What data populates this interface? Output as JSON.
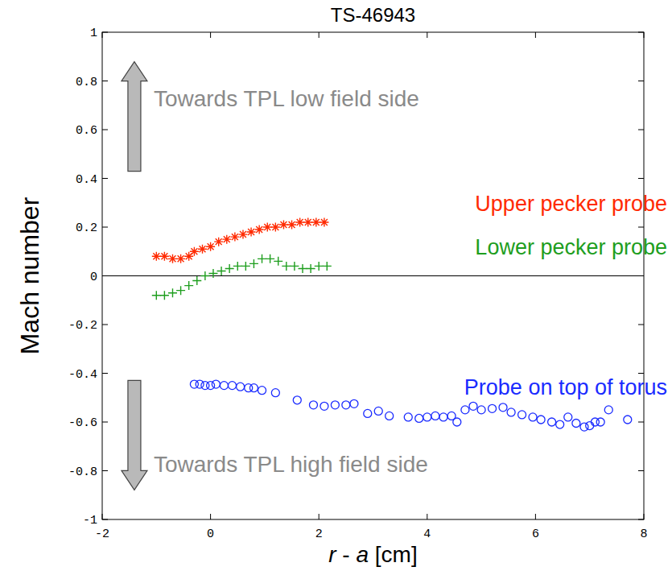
{
  "chart_data": {
    "type": "scatter",
    "title": "TS-46943",
    "x_label": "r - a [cm]",
    "y_label": "Mach number",
    "xlim": [
      -2,
      8
    ],
    "ylim": [
      -1,
      1
    ],
    "xticks": [
      -2,
      0,
      2,
      4,
      6,
      8
    ],
    "yticks": [
      -1,
      -0.8,
      -0.6,
      -0.4,
      -0.2,
      0,
      0.2,
      0.4,
      0.6,
      0.8,
      1
    ],
    "grid": false,
    "reference_line": 0,
    "annotations": [
      {
        "text": "Towards TPL low field side",
        "x": -1.05,
        "y": 0.72,
        "arrow": "up"
      },
      {
        "text": "Towards TPL high field side",
        "x": -1.05,
        "y": -0.78,
        "arrow": "down"
      }
    ],
    "series": [
      {
        "name": "Upper pecker probe",
        "color": "#ff2a00",
        "marker": "asterisk",
        "x": [
          -1.0,
          -0.85,
          -0.7,
          -0.55,
          -0.4,
          -0.3,
          -0.15,
          0,
          0.15,
          0.3,
          0.45,
          0.6,
          0.75,
          0.9,
          1.05,
          1.2,
          1.35,
          1.5,
          1.65,
          1.8,
          1.95,
          2.1
        ],
        "values": [
          0.08,
          0.08,
          0.07,
          0.07,
          0.08,
          0.1,
          0.11,
          0.12,
          0.14,
          0.15,
          0.16,
          0.17,
          0.18,
          0.19,
          0.2,
          0.2,
          0.21,
          0.21,
          0.22,
          0.22,
          0.22,
          0.22
        ]
      },
      {
        "name": "Lower pecker probe",
        "color": "#1e9e1e",
        "marker": "plus",
        "x": [
          -1.0,
          -0.85,
          -0.7,
          -0.55,
          -0.4,
          -0.25,
          -0.1,
          0.05,
          0.2,
          0.35,
          0.5,
          0.65,
          0.8,
          0.95,
          1.1,
          1.25,
          1.4,
          1.55,
          1.7,
          1.85,
          2.0,
          2.15
        ],
        "values": [
          -0.08,
          -0.08,
          -0.07,
          -0.06,
          -0.04,
          -0.02,
          0.0,
          0.01,
          0.02,
          0.03,
          0.04,
          0.04,
          0.05,
          0.07,
          0.07,
          0.06,
          0.04,
          0.04,
          0.03,
          0.03,
          0.04,
          0.04
        ]
      },
      {
        "name": "Probe on top of torus",
        "color": "#1a2bff",
        "marker": "circle",
        "x": [
          -0.3,
          -0.2,
          -0.1,
          0,
          0.1,
          0.25,
          0.4,
          0.55,
          0.7,
          0.8,
          0.95,
          1.2,
          1.6,
          1.9,
          2.1,
          2.3,
          2.5,
          2.65,
          2.9,
          3.1,
          3.3,
          3.65,
          3.85,
          4.0,
          4.15,
          4.3,
          4.45,
          4.55,
          4.7,
          4.85,
          5.0,
          5.2,
          5.4,
          5.55,
          5.75,
          5.95,
          6.1,
          6.3,
          6.45,
          6.6,
          6.75,
          6.9,
          7.0,
          7.1,
          7.2,
          7.35,
          7.7
        ],
        "values": [
          -0.445,
          -0.445,
          -0.45,
          -0.45,
          -0.445,
          -0.45,
          -0.45,
          -0.455,
          -0.46,
          -0.46,
          -0.47,
          -0.48,
          -0.51,
          -0.53,
          -0.535,
          -0.53,
          -0.53,
          -0.525,
          -0.565,
          -0.555,
          -0.575,
          -0.58,
          -0.585,
          -0.58,
          -0.575,
          -0.58,
          -0.575,
          -0.6,
          -0.55,
          -0.535,
          -0.55,
          -0.545,
          -0.54,
          -0.56,
          -0.57,
          -0.58,
          -0.59,
          -0.6,
          -0.61,
          -0.58,
          -0.605,
          -0.62,
          -0.615,
          -0.6,
          -0.6,
          -0.55,
          -0.59
        ]
      }
    ]
  }
}
